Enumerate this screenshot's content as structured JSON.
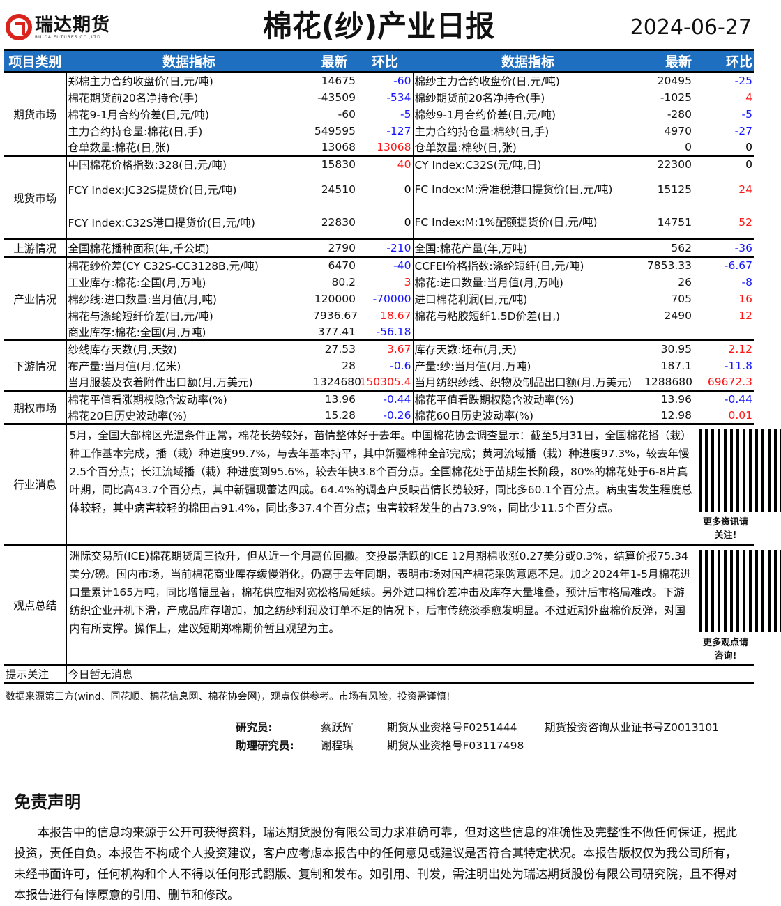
{
  "header": {
    "logo_cn": "瑞达期货",
    "logo_en": "RUIDA FUTURES CO.,LTD.",
    "title": "棉花(纱)产业日报",
    "date": "2024-06-27"
  },
  "columns": {
    "category": "项目类别",
    "metric": "数据指标",
    "latest": "最新",
    "change": "环比"
  },
  "groups": [
    {
      "name": "期货市场",
      "rows": [
        [
          "郑棉主力合约收盘价(日,元/吨)",
          "14675",
          "-60",
          "棉纱主力合约收盘价(日,元/吨)",
          "20495",
          "-25"
        ],
        [
          "棉花期货前20名净持仓(手)",
          "-43509",
          "-534",
          "棉纱期货前20名净持仓(手)",
          "-1025",
          "4"
        ],
        [
          "棉花9-1月合约价差(日,元/吨)",
          "-60",
          "-5",
          "棉纱9-1月合约价差(日,元/吨)",
          "-280",
          "-5"
        ],
        [
          "主力合约持仓量:棉花(日,手)",
          "549595",
          "-127",
          "主力合约持仓量:棉纱(日,手)",
          "4970",
          "-27"
        ],
        [
          "仓单数量:棉花(日,张)",
          "13068",
          "13068",
          "仓单数量:棉纱(日,张)",
          "0",
          "0"
        ]
      ]
    },
    {
      "name": "现货市场",
      "rows": [
        [
          "中国棉花价格指数:328(日,元/吨)",
          "15830",
          "40",
          "CY Index:C32S(元/吨,日)",
          "22300",
          "0"
        ],
        [
          "FCY Index:JC32S提货价(日,元/吨)",
          "24510",
          "0",
          "FC Index:M:滑准税港口提货价(日,元/吨)",
          "15125",
          "24"
        ],
        [
          "FCY Index:C32S港口提货价(日,元/吨)",
          "22830",
          "0",
          "FC Index:M:1%配额提货价(日,元/吨)",
          "14751",
          "52"
        ]
      ]
    },
    {
      "name": "上游情况",
      "rows": [
        [
          "全国棉花播种面积(年,千公顷)",
          "2790",
          "-210",
          "全国:棉花产量(年,万吨)",
          "562",
          "-36"
        ]
      ]
    },
    {
      "name": "产业情况",
      "rows": [
        [
          "棉花纱价差(CY C32S-CC3128B,元/吨)",
          "6470",
          "-40",
          "CCFEI价格指数:涤纶短纤(日,元/吨)",
          "7853.33",
          "-6.67"
        ],
        [
          "工业库存:棉花:全国(月,万吨)",
          "80.2",
          "3",
          "棉花:进口数量:当月值(月,万吨)",
          "26",
          "-8"
        ],
        [
          "棉纱线:进口数量:当月值(月,吨)",
          "120000",
          "-70000",
          "进口棉花利润(日,元/吨)",
          "705",
          "16"
        ],
        [
          "棉花与涤纶短纤价差(日,元/吨)",
          "7936.67",
          "18.67",
          "棉花与粘胶短纤1.5D价差(日,)",
          "2490",
          "12"
        ],
        [
          "商业库存:棉花:全国(月,万吨)",
          "377.41",
          "-56.18",
          "",
          "",
          ""
        ]
      ]
    },
    {
      "name": "下游情况",
      "rows": [
        [
          "纱线库存天数(月,天数)",
          "27.53",
          "3.67",
          "库存天数:坯布(月,天)",
          "30.95",
          "2.12"
        ],
        [
          "布产量:当月值(月,亿米)",
          "28",
          "-0.6",
          "产量:纱:当月值(月,万吨)",
          "187.1",
          "-11.8"
        ],
        [
          "当月服装及衣着附件出口额(月,万美元)",
          "1324680",
          "150305.4",
          "当月纺织纱线、织物及制品出口额(月,万美元)",
          "1288680",
          "69672.3"
        ]
      ]
    },
    {
      "name": "期权市场",
      "rows": [
        [
          "棉花平值看涨期权隐含波动率(%)",
          "13.96",
          "-0.44",
          "棉花平值看跌期权隐含波动率(%)",
          "13.96",
          "-0.44"
        ],
        [
          "棉花20日历史波动率(%)",
          "15.28",
          "-0.26",
          "棉花60日历史波动率(%)",
          "12.98",
          "0.01"
        ]
      ]
    }
  ],
  "news": {
    "label": "行业消息",
    "text": "5月，全国大部棉区光温条件正常，棉花长势较好，苗情整体好于去年。中国棉花协会调查显示：截至5月31日，全国棉花播（栽）种工作基本完成，播（栽）种进度99.7%，与去年基本持平，其中新疆棉种全部完成；黄河流域播（栽）种进度97.3%，较去年慢2.5个百分点；长江流域播（栽）种进度到95.6%，较去年快3.8个百分点。全国棉花处于苗期生长阶段，80%的棉花处于6-8片真叶期，同比高43.7个百分点，其中新疆现蕾达四成。64.4%的调查户反映苗情长势较好，同比多60.1个百分点。病虫害发生程度总体较轻，其中病害较轻的棉田占91.4%，同比多37.4个百分点；虫害较轻发生的占73.9%，同比少11.5个百分点。",
    "qr_caption": "更多资讯请关注!"
  },
  "opinion": {
    "label": "观点总结",
    "text": "洲际交易所(ICE)棉花期货周三微升，但从近一个月高位回撤。交投最活跃的ICE 12月期棉收涨0.27美分或0.3%，结算价报75.34美分/磅。国内市场，当前棉花商业库存缓慢消化，仍高于去年同期，表明市场对国产棉花采购意愿不足。加之2024年1-5月棉花进口量累计165万吨，同比增幅显著，棉花供应相对宽松格局延续。另外进口棉价差冲击及库存大量堆叠，预计后市格局难改。下游纺织企业开机下滑，产成品库存增加，加之纺纱利润及订单不足的情况下，后市传统淡季愈发明显。不过近期外盘棉价反弹，对国内有所支撑。操作上，建议短期郑棉期价暂且观望为主。",
    "qr_caption": "更多观点请咨询!"
  },
  "hint": {
    "label": "提示关注",
    "text": "今日暂无消息"
  },
  "source_note": "数据来源第三方(wind、同花顺、棉花信息网、棉花协会网)，观点仅供参考。市场有风险，投资需谨慎!",
  "staff": [
    {
      "role": "研究员:",
      "name": "蔡跃辉",
      "cert1": "期货从业资格号F0251444",
      "cert2": "期货投资咨询从业证书号Z0013101"
    },
    {
      "role": "助理研究员:",
      "name": "谢程琪",
      "cert1": "期货从业资格号F03117498",
      "cert2": ""
    }
  ],
  "disclaimer": {
    "title": "免责声明",
    "text": "本报告中的信息均来源于公开可获得资料，瑞达期货股份有限公司力求准确可靠，但对这些信息的准确性及完整性不做任何保证，据此投资，责任自负。本报告不构成个人投资建议，客户应考虑本报告中的任何意见或建议是否符合其特定状况。本报告版权仅为我公司所有，未经书面许可，任何机构和个人不得以任何形式翻版、复制和发布。如引用、刊发，需注明出处为瑞达期货股份有限公司研究院，且不得对本报告进行有悖原意的引用、删节和修改。"
  },
  "colors": {
    "header_bg": "#1f6fc1",
    "negative": "#1515ff",
    "positive": "#ff1515",
    "brand": "#d9231d"
  }
}
